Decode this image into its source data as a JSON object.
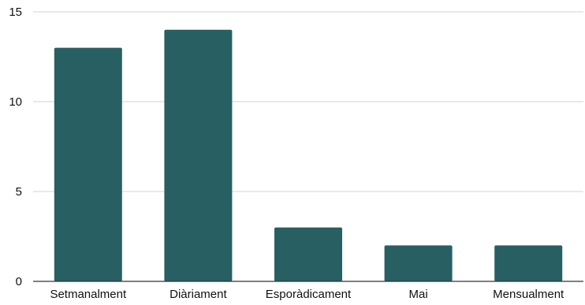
{
  "chart_data": {
    "type": "bar",
    "title": "",
    "xlabel": "",
    "ylabel": "",
    "categories": [
      "Setmanalment",
      "Diàriament",
      "Esporàdicament",
      "Mai",
      "Mensualment"
    ],
    "values": [
      13,
      14,
      3,
      2,
      2
    ],
    "ylim": [
      0,
      15
    ],
    "yticks": [
      0,
      5,
      10,
      15
    ],
    "grid": true,
    "legend": "none",
    "colors": {
      "bar": "#285f63",
      "grid": "#d3d3d3",
      "axis": "#333333",
      "text": "#111111"
    }
  }
}
